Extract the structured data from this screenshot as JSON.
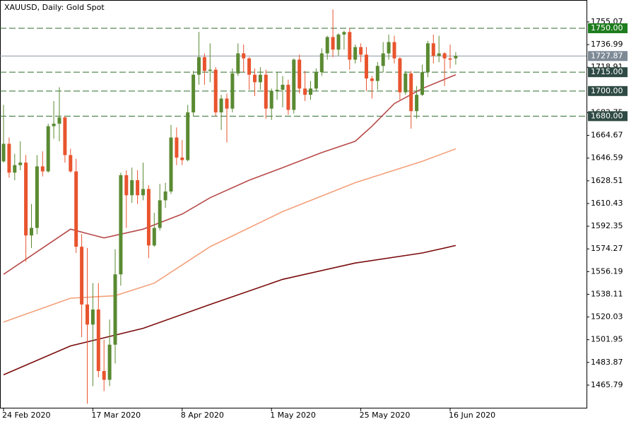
{
  "chart_data": {
    "type": "candlestick",
    "title": "XAUUSD, Daily:  Gold Spot",
    "categories": [
      "24 Feb 2020",
      null,
      null,
      null,
      null,
      null,
      null,
      null,
      null,
      null,
      null,
      null,
      null,
      null,
      null,
      null,
      "17 Mar 2020",
      null,
      null,
      null,
      null,
      null,
      null,
      null,
      null,
      null,
      null,
      null,
      null,
      null,
      null,
      null,
      "8 Apr 2020",
      null,
      null,
      null,
      null,
      null,
      null,
      null,
      null,
      null,
      null,
      null,
      null,
      null,
      null,
      null,
      "1 May 2020",
      null,
      null,
      null,
      null,
      null,
      null,
      null,
      null,
      null,
      null,
      null,
      null,
      null,
      null,
      null,
      "25 May 2020",
      null,
      null,
      null,
      null,
      null,
      null,
      null,
      null,
      null,
      null,
      null,
      null,
      null,
      null,
      null,
      "16 Jun 2020",
      null
    ],
    "open": [
      1644,
      1658,
      1635,
      1641,
      1643,
      1585,
      1591,
      1640,
      1636,
      1672,
      1674,
      1679,
      1649,
      1636,
      1576,
      1530,
      1514,
      1526,
      1477,
      1470,
      1498,
      1554,
      1633,
      1617,
      1629,
      1617,
      1622,
      1577,
      1591,
      1613,
      1620,
      1663,
      1647,
      1645,
      1683,
      1713,
      1727,
      1716,
      1717,
      1683,
      1694,
      1686,
      1714,
      1730,
      1726,
      1713,
      1707,
      1713,
      1686,
      1700,
      1701,
      1705,
      1685,
      1725,
      1702,
      1697,
      1702,
      1715,
      1730,
      1743,
      1733,
      1745,
      1747,
      1725,
      1735,
      1729,
      1710,
      1708,
      1720,
      1730,
      1739,
      1726,
      1699,
      1714,
      1684,
      1697,
      1715,
      1738,
      1728,
      1730,
      1726,
      1726
    ],
    "high": [
      1689,
      1663,
      1650,
      1660,
      1649,
      1610,
      1649,
      1652,
      1674,
      1692,
      1703,
      1680,
      1654,
      1646,
      1586,
      1575,
      1547,
      1547,
      1502,
      1518,
      1574,
      1635,
      1637,
      1639,
      1637,
      1643,
      1625,
      1603,
      1626,
      1627,
      1673,
      1671,
      1661,
      1689,
      1716,
      1747,
      1730,
      1738,
      1719,
      1697,
      1698,
      1718,
      1738,
      1737,
      1727,
      1718,
      1719,
      1717,
      1702,
      1715,
      1712,
      1709,
      1726,
      1729,
      1716,
      1708,
      1718,
      1734,
      1744,
      1765,
      1746,
      1748,
      1750,
      1737,
      1738,
      1735,
      1712,
      1723,
      1739,
      1745,
      1744,
      1727,
      1716,
      1716,
      1704,
      1721,
      1740,
      1745,
      1744,
      1731,
      1737,
      1731
    ],
    "low": [
      1643,
      1631,
      1629,
      1637,
      1564,
      1575,
      1586,
      1632,
      1635,
      1662,
      1660,
      1643,
      1635,
      1571,
      1504,
      1451,
      1465,
      1472,
      1461,
      1465,
      1483,
      1545,
      1591,
      1611,
      1610,
      1613,
      1567,
      1576,
      1589,
      1607,
      1618,
      1641,
      1641,
      1644,
      1680,
      1705,
      1705,
      1707,
      1680,
      1669,
      1659,
      1683,
      1712,
      1715,
      1701,
      1696,
      1701,
      1678,
      1677,
      1693,
      1687,
      1681,
      1682,
      1698,
      1692,
      1693,
      1700,
      1712,
      1725,
      1727,
      1728,
      1733,
      1717,
      1722,
      1723,
      1700,
      1694,
      1701,
      1715,
      1725,
      1722,
      1693,
      1697,
      1670,
      1678,
      1696,
      1711,
      1722,
      1723,
      1704,
      1718,
      1721
    ],
    "close": [
      1658,
      1635,
      1641,
      1643,
      1585,
      1591,
      1640,
      1636,
      1672,
      1674,
      1679,
      1649,
      1636,
      1576,
      1530,
      1514,
      1526,
      1477,
      1470,
      1498,
      1554,
      1633,
      1617,
      1629,
      1617,
      1622,
      1577,
      1591,
      1613,
      1620,
      1663,
      1647,
      1645,
      1683,
      1713,
      1727,
      1716,
      1717,
      1683,
      1694,
      1686,
      1714,
      1730,
      1726,
      1713,
      1707,
      1713,
      1686,
      1700,
      1701,
      1705,
      1685,
      1725,
      1702,
      1697,
      1702,
      1715,
      1730,
      1743,
      1733,
      1745,
      1747,
      1725,
      1735,
      1729,
      1710,
      1708,
      1720,
      1730,
      1739,
      1726,
      1699,
      1714,
      1684,
      1697,
      1715,
      1738,
      1728,
      1730,
      1726,
      1725,
      1728
    ],
    "bull_color": "#5a8a32",
    "bear_color": "#e8542e",
    "ylim": [
      1447.2,
      1772.5
    ],
    "yticks": [
      1755.07,
      1736.99,
      1718.91,
      1682.75,
      1664.67,
      1646.59,
      1628.51,
      1610.43,
      1592.35,
      1574.27,
      1556.19,
      1538.11,
      1520.03,
      1501.95,
      1483.87,
      1465.79
    ],
    "moving_averages": [
      {
        "color": "#b84a4a",
        "x": [
          0,
          12,
          18,
          25,
          32,
          37,
          44,
          50,
          57,
          63,
          66,
          70,
          75,
          81
        ],
        "values": [
          1554,
          1590,
          1583,
          1590,
          1602,
          1615,
          1629,
          1639,
          1651,
          1660,
          1672,
          1690,
          1702,
          1713
        ]
      },
      {
        "color": "#f4a07a",
        "x": [
          0,
          12,
          20,
          27,
          37,
          50,
          63,
          75,
          81
        ],
        "values": [
          1516,
          1535,
          1537,
          1547,
          1576,
          1604,
          1627,
          1644,
          1654
        ]
      },
      {
        "color": "#7a0a0a",
        "x": [
          0,
          12,
          25,
          37,
          50,
          63,
          75,
          81
        ],
        "values": [
          1474,
          1497,
          1511,
          1530,
          1550,
          1563,
          1571,
          1577
        ]
      }
    ],
    "levels": [
      {
        "value": 1750,
        "label": "1750.00",
        "color": "#1e7d1e"
      },
      {
        "value": 1715,
        "label": "1715.00",
        "color": "#2f4a44"
      },
      {
        "value": 1700,
        "label": "1700.00",
        "color": "#2f4a44"
      },
      {
        "value": 1680,
        "label": "1680.00",
        "color": "#2f4a44"
      }
    ],
    "last_price": {
      "value": 1727.87,
      "color": "#7d8a96"
    }
  }
}
